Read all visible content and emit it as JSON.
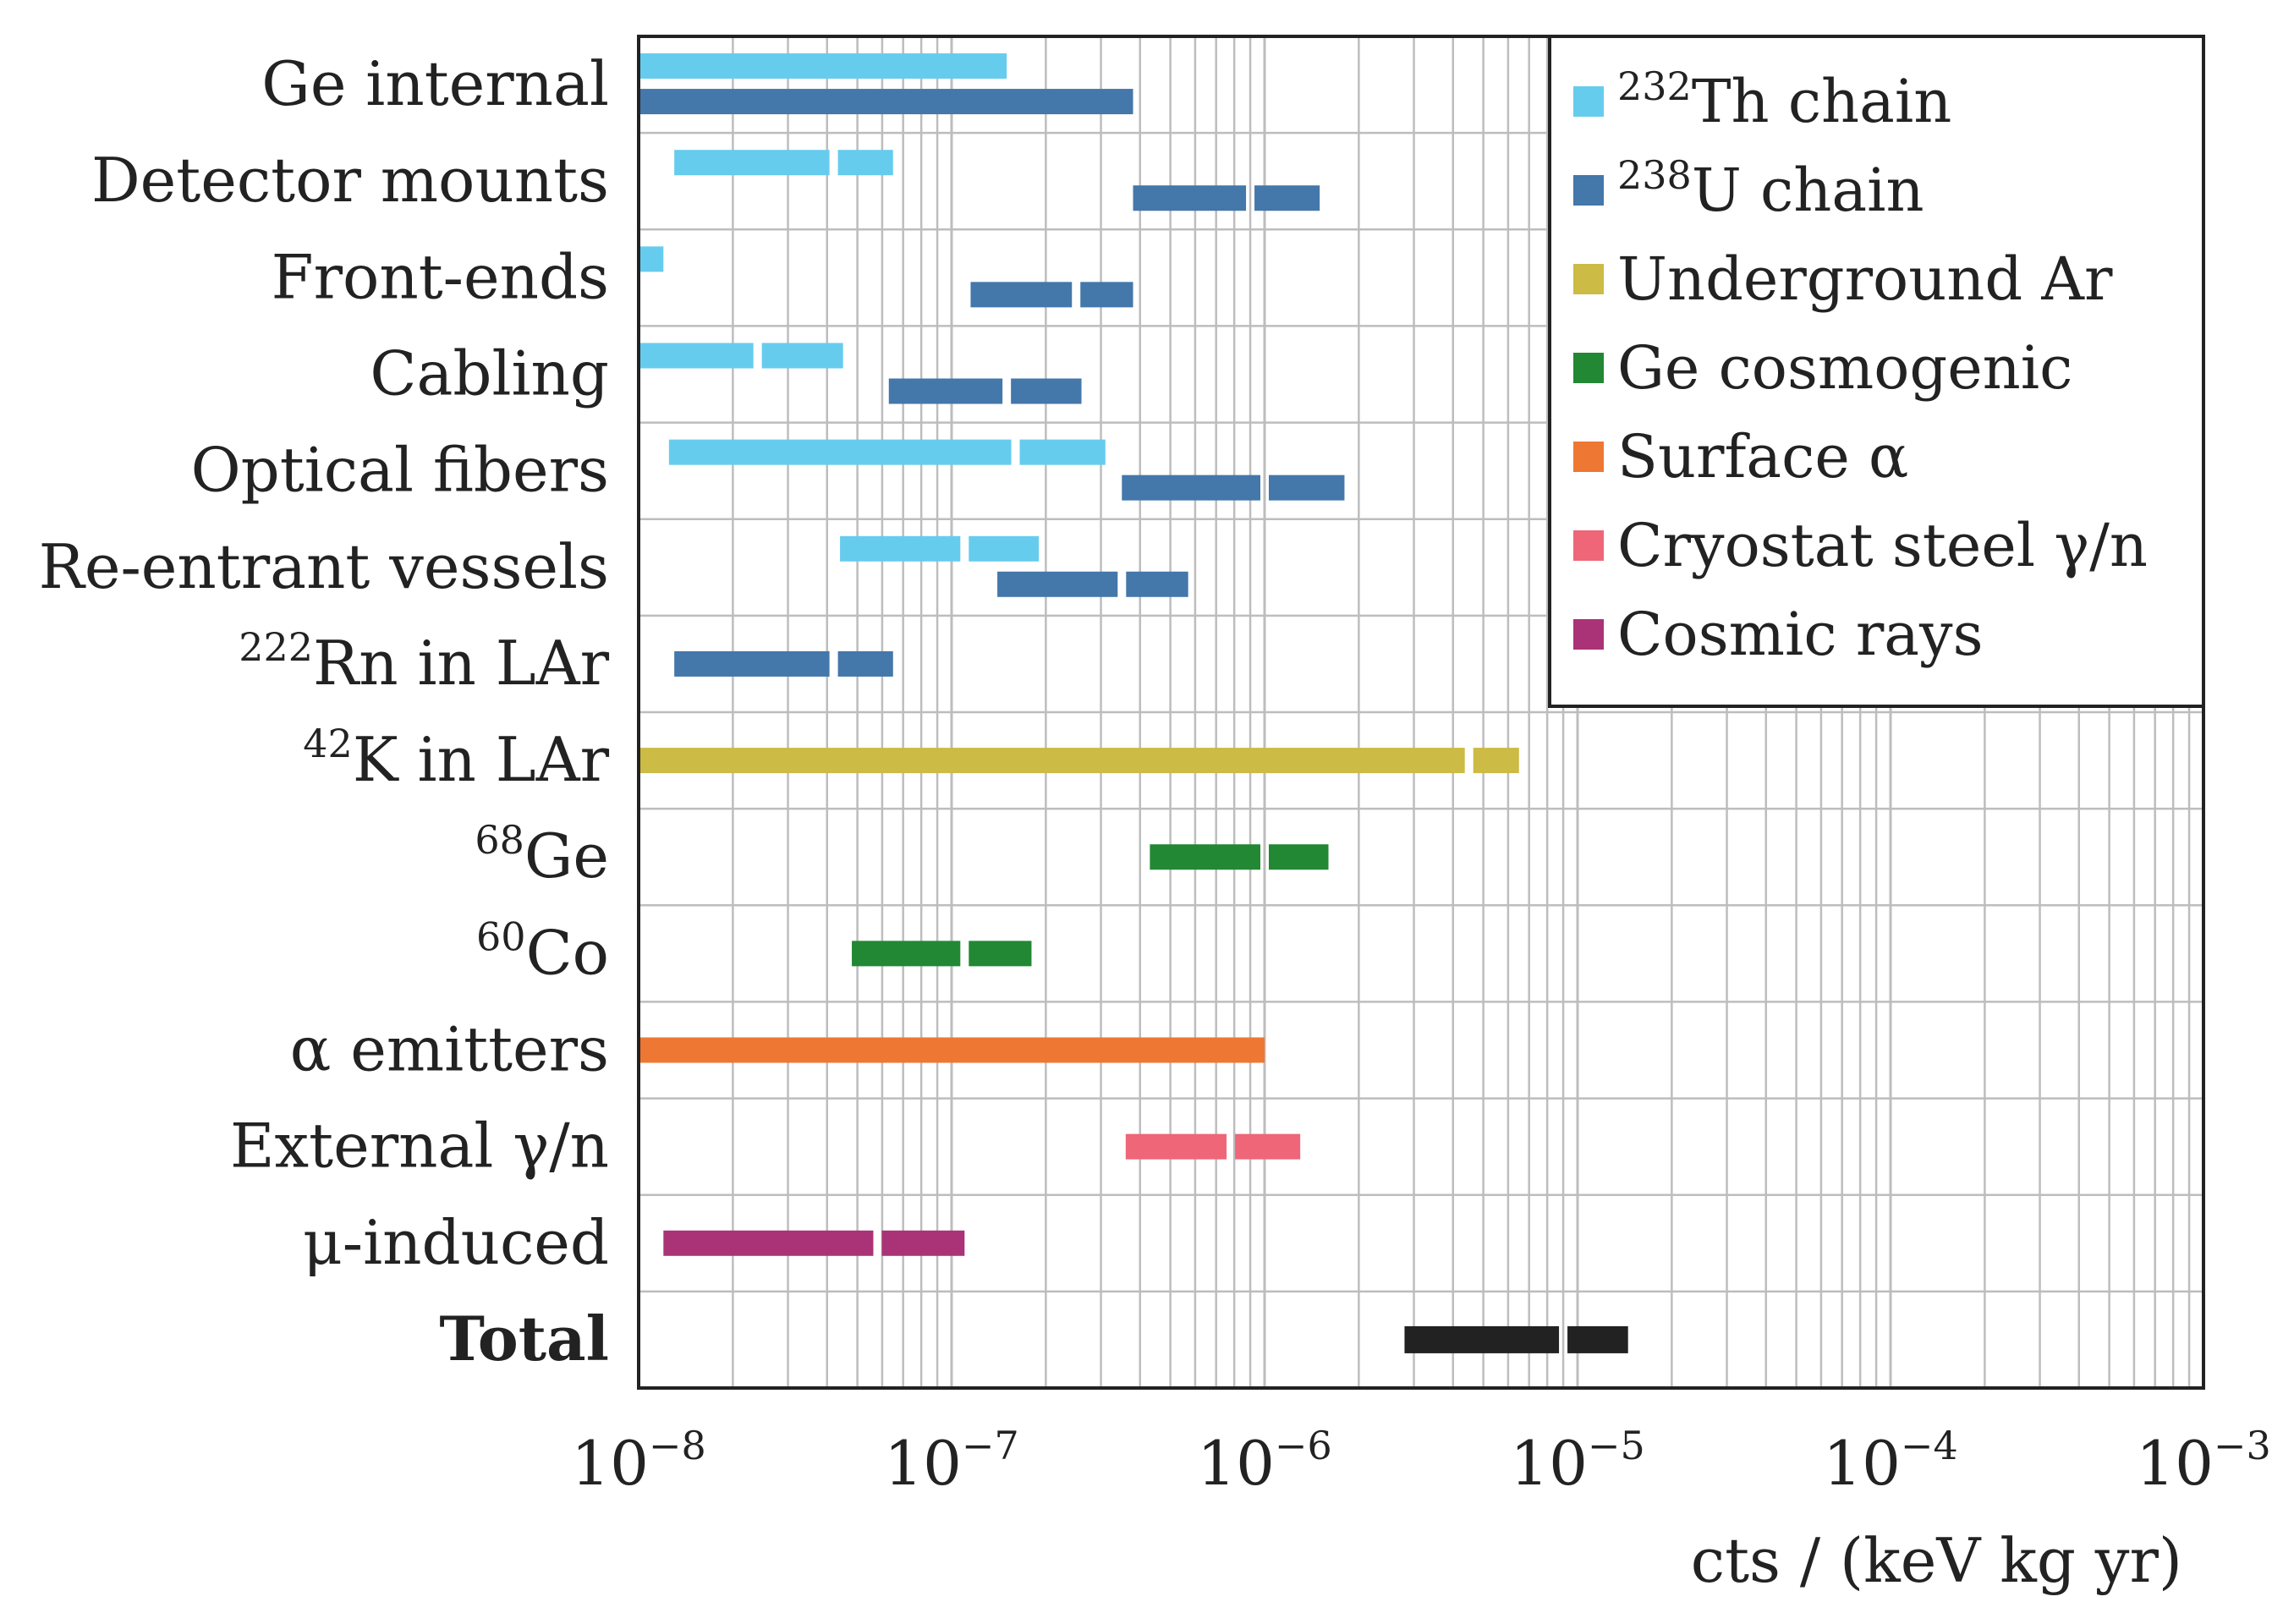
{
  "chart_data": {
    "type": "bar",
    "orientation": "horizontal",
    "subtype": "range",
    "x_scale": "log",
    "xlim": [
      1e-08,
      0.001
    ],
    "xlabel": "cts / (keV kg yr)",
    "xticks": [
      {
        "value": 1e-08,
        "base": "10",
        "exp": "−8"
      },
      {
        "value": 1e-07,
        "base": "10",
        "exp": "−7"
      },
      {
        "value": 1e-06,
        "base": "10",
        "exp": "−6"
      },
      {
        "value": 1e-05,
        "base": "10",
        "exp": "−5"
      },
      {
        "value": 0.0001,
        "base": "10",
        "exp": "−4"
      },
      {
        "value": 0.001,
        "base": "10",
        "exp": "−3"
      }
    ],
    "grid": true,
    "legend_position": "top-right",
    "categories": [
      {
        "sup": "",
        "text": "Ge internal",
        "bold": false
      },
      {
        "sup": "",
        "text": "Detector mounts",
        "bold": false
      },
      {
        "sup": "",
        "text": "Front-ends",
        "bold": false
      },
      {
        "sup": "",
        "text": "Cabling",
        "bold": false
      },
      {
        "sup": "",
        "text": "Optical fibers",
        "bold": false
      },
      {
        "sup": "",
        "text": "Re-entrant vessels",
        "bold": false
      },
      {
        "sup": "222",
        "text": "Rn in LAr",
        "bold": false
      },
      {
        "sup": "42",
        "text": "K in LAr",
        "bold": false
      },
      {
        "sup": "68",
        "text": "Ge",
        "bold": false
      },
      {
        "sup": "60",
        "text": "Co",
        "bold": false
      },
      {
        "sup": "",
        "text": "α emitters",
        "bold": false
      },
      {
        "sup": "",
        "text": "External γ/n",
        "bold": false
      },
      {
        "sup": "",
        "text": "μ-induced",
        "bold": false
      },
      {
        "sup": "",
        "text": "Total",
        "bold": true
      }
    ],
    "series": [
      {
        "name": "232Th chain",
        "sup": "232",
        "label": "Th chain",
        "color": "#66ccee"
      },
      {
        "name": "238U chain",
        "sup": "238",
        "label": "U chain",
        "color": "#4477aa"
      },
      {
        "name": "Underground Ar",
        "sup": "",
        "label": "Underground Ar",
        "color": "#ccbb44"
      },
      {
        "name": "Ge cosmogenic",
        "sup": "",
        "label": "Ge cosmogenic",
        "color": "#228833"
      },
      {
        "name": "Surface α",
        "sup": "",
        "label": "Surface α",
        "color": "#ee7733"
      },
      {
        "name": "Cryostat steel γ/n",
        "sup": "",
        "label": "Cryostat steel γ/n",
        "color": "#ee6677"
      },
      {
        "name": "Cosmic rays",
        "sup": "",
        "label": "Cosmic rays",
        "color": "#aa3377"
      },
      {
        "name": "Total",
        "sup": "",
        "label": "",
        "color": "#222222",
        "in_legend": false
      }
    ],
    "bars": [
      {
        "category": 0,
        "series": "232Th chain",
        "lane": "upper",
        "from": 1e-08,
        "to": 1.5e-07
      },
      {
        "category": 0,
        "series": "238U chain",
        "lane": "lower",
        "from": 1e-08,
        "to": 3.8e-07
      },
      {
        "category": 1,
        "series": "232Th chain",
        "lane": "upper",
        "from": 1.3e-08,
        "mid": 4.2e-08,
        "to": 6.5e-08
      },
      {
        "category": 1,
        "series": "238U chain",
        "lane": "lower",
        "from": 3.8e-07,
        "mid": 9e-07,
        "to": 1.5e-06
      },
      {
        "category": 2,
        "series": "232Th chain",
        "lane": "upper",
        "from": 1e-08,
        "to": 1.2e-08
      },
      {
        "category": 2,
        "series": "238U chain",
        "lane": "lower",
        "from": 1.15e-07,
        "mid": 2.5e-07,
        "to": 3.8e-07
      },
      {
        "category": 3,
        "series": "232Th chain",
        "lane": "upper",
        "from": 1e-08,
        "mid": 2.4e-08,
        "to": 4.5e-08
      },
      {
        "category": 3,
        "series": "238U chain",
        "lane": "lower",
        "from": 6.3e-08,
        "mid": 1.5e-07,
        "to": 2.6e-07
      },
      {
        "category": 4,
        "series": "232Th chain",
        "lane": "upper",
        "from": 1.25e-08,
        "mid": 1.6e-07,
        "to": 3.1e-07
      },
      {
        "category": 4,
        "series": "238U chain",
        "lane": "lower",
        "from": 3.5e-07,
        "mid": 1e-06,
        "to": 1.8e-06
      },
      {
        "category": 5,
        "series": "232Th chain",
        "lane": "upper",
        "from": 4.4e-08,
        "mid": 1.1e-07,
        "to": 1.9e-07
      },
      {
        "category": 5,
        "series": "238U chain",
        "lane": "lower",
        "from": 1.4e-07,
        "mid": 3.5e-07,
        "to": 5.7e-07
      },
      {
        "category": 6,
        "series": "238U chain",
        "lane": "center",
        "from": 1.3e-08,
        "mid": 4.2e-08,
        "to": 6.5e-08
      },
      {
        "category": 7,
        "series": "Underground Ar",
        "lane": "center",
        "from": 1e-08,
        "mid": 4.5e-06,
        "to": 6.5e-06
      },
      {
        "category": 8,
        "series": "Ge cosmogenic",
        "lane": "center",
        "from": 4.3e-07,
        "mid": 1e-06,
        "to": 1.6e-06
      },
      {
        "category": 9,
        "series": "Ge cosmogenic",
        "lane": "center",
        "from": 4.8e-08,
        "mid": 1.1e-07,
        "to": 1.8e-07
      },
      {
        "category": 10,
        "series": "Surface α",
        "lane": "center",
        "from": 1e-08,
        "to": 1e-06
      },
      {
        "category": 11,
        "series": "Cryostat steel γ/n",
        "lane": "center",
        "from": 3.6e-07,
        "mid": 7.8e-07,
        "to": 1.3e-06
      },
      {
        "category": 12,
        "series": "Cosmic rays",
        "lane": "center",
        "from": 1.2e-08,
        "mid": 5.8e-08,
        "to": 1.1e-07
      },
      {
        "category": 13,
        "series": "Total",
        "lane": "center",
        "from": 2.8e-06,
        "mid": 9e-06,
        "to": 1.45e-05
      }
    ]
  }
}
